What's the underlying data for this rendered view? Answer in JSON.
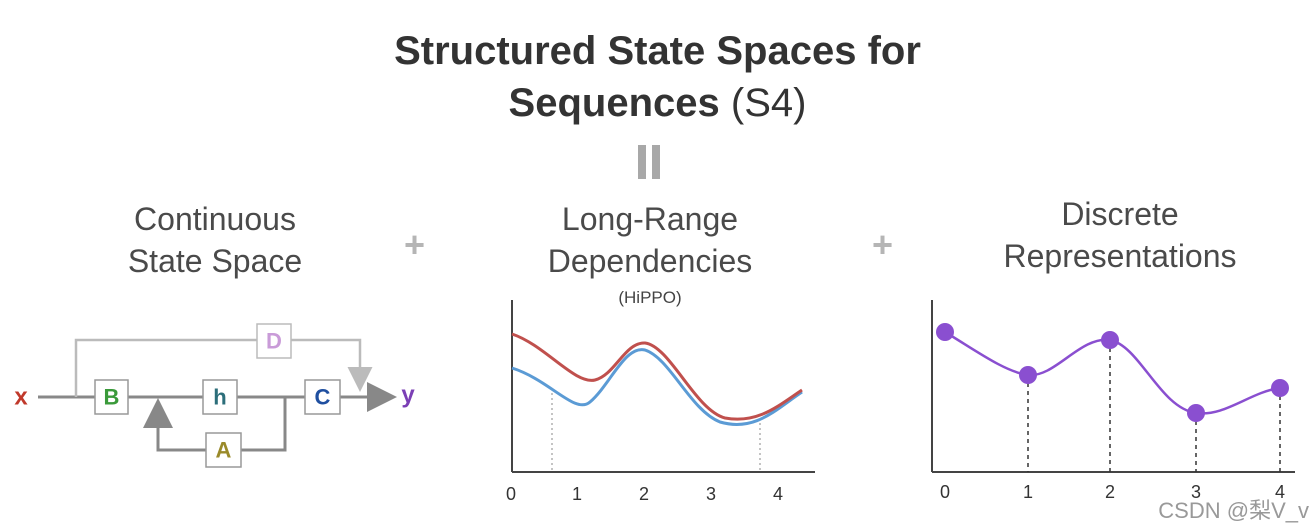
{
  "title": {
    "line1": "Structured State Spaces for",
    "line2_bold": "Sequences",
    "line2_light": "(S4)"
  },
  "panels": {
    "left": {
      "title_lines": [
        "Continuous",
        "State Space"
      ],
      "nodes": {
        "x": "x",
        "y": "y",
        "B": "B",
        "h": "h",
        "C": "C",
        "D": "D",
        "A": "A"
      }
    },
    "middle": {
      "title_lines": [
        "Long-Range",
        "Dependencies"
      ],
      "subtitle": "(HiPPO)",
      "x_ticks": [
        "0",
        "1",
        "2",
        "3",
        "4"
      ]
    },
    "right": {
      "title_lines": [
        "Discrete",
        "Representations"
      ],
      "x_ticks": [
        "0",
        "1",
        "2",
        "3",
        "4"
      ]
    }
  },
  "plus_signs": [
    "+",
    "+"
  ],
  "watermark": "CSDN @梨V_v",
  "colors": {
    "x": "#c0392b",
    "y": "#7b3fb5",
    "B": "#3a9a3a",
    "h": "#2c6e7a",
    "C": "#1f4fa0",
    "D": "#c99bd8",
    "A": "#9a8a2a",
    "red_line": "#c0504d",
    "blue_line": "#5b9bd5",
    "purple": "#8a4fd0"
  }
}
